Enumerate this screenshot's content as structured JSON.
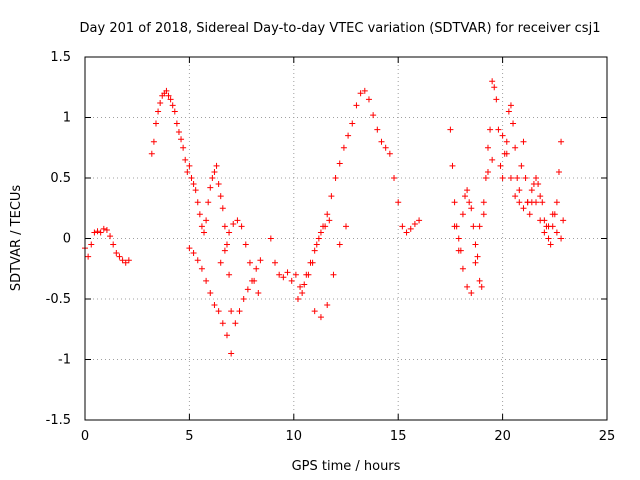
{
  "chart_data": {
    "type": "scatter",
    "title": "Day 201 of 2018, Sidereal Day-to-day VTEC variation (SDTVAR) for receiver csj1",
    "xlabel": "GPS time / hours",
    "ylabel": "SDTVAR / TECUs",
    "xlim": [
      0,
      25
    ],
    "ylim": [
      -1.5,
      1.5
    ],
    "xticks": [
      0,
      5,
      10,
      15,
      20,
      25
    ],
    "yticks": [
      -1.5,
      -1,
      -0.5,
      0,
      0.5,
      1,
      1.5
    ],
    "xtick_labels": [
      "0",
      "5",
      "10",
      "15",
      "20",
      "25"
    ],
    "ytick_labels": [
      "-1.5",
      "-1",
      "-0.5",
      "0",
      "0.5",
      "1",
      "1.5"
    ],
    "grid": true,
    "marker": "+",
    "color": "#ff0000",
    "series": [
      {
        "name": "SDTVAR",
        "x": [
          0.0,
          0.15,
          0.3,
          0.45,
          0.6,
          0.75,
          0.9,
          1.05,
          1.2,
          1.35,
          1.5,
          1.65,
          1.8,
          1.95,
          2.1,
          3.2,
          3.3,
          3.4,
          3.5,
          3.6,
          3.7,
          3.8,
          3.9,
          4.0,
          4.1,
          4.2,
          4.3,
          4.4,
          4.5,
          4.6,
          4.7,
          4.8,
          4.9,
          5.0,
          5.1,
          5.2,
          5.3,
          5.4,
          5.5,
          5.6,
          5.7,
          5.8,
          5.9,
          6.0,
          6.1,
          6.2,
          6.3,
          6.4,
          6.5,
          6.6,
          6.7,
          6.8,
          6.9,
          7.0,
          5.0,
          5.2,
          5.4,
          5.6,
          5.8,
          6.0,
          6.2,
          6.4,
          6.6,
          6.8,
          7.0,
          7.2,
          7.4,
          7.6,
          7.8,
          8.0,
          8.2,
          8.4,
          6.5,
          6.7,
          6.9,
          7.1,
          7.3,
          7.5,
          7.7,
          7.9,
          8.1,
          8.3,
          8.9,
          9.1,
          9.3,
          9.5,
          9.7,
          9.9,
          10.1,
          10.3,
          10.5,
          10.7,
          10.9,
          11.1,
          11.3,
          11.5,
          11.7,
          10.2,
          10.4,
          10.6,
          10.8,
          11.0,
          11.2,
          11.4,
          11.6,
          11.8,
          12.0,
          12.2,
          12.4,
          12.6,
          12.8,
          13.0,
          13.2,
          13.4,
          13.6,
          13.8,
          14.0,
          14.2,
          14.4,
          14.6,
          14.8,
          15.0,
          15.2,
          15.4,
          15.6,
          15.8,
          16.0,
          11.0,
          11.3,
          11.6,
          11.9,
          12.2,
          12.5,
          17.5,
          17.6,
          17.7,
          17.8,
          17.9,
          18.0,
          18.1,
          18.2,
          18.3,
          18.4,
          18.5,
          18.6,
          18.7,
          18.8,
          18.9,
          19.0,
          19.1,
          19.2,
          19.3,
          19.4,
          19.5,
          19.6,
          19.7,
          19.8,
          19.9,
          20.0,
          20.1,
          20.2,
          20.3,
          20.4,
          20.5,
          20.6,
          20.7,
          20.8,
          20.9,
          21.0,
          21.1,
          21.2,
          21.3,
          21.4,
          21.5,
          21.6,
          21.7,
          21.8,
          21.9,
          22.0,
          22.1,
          22.2,
          22.3,
          22.4,
          22.5,
          22.6,
          22.7,
          22.8,
          22.9,
          17.7,
          17.9,
          18.1,
          18.3,
          18.5,
          18.7,
          18.9,
          19.1,
          19.3,
          19.5,
          20.0,
          20.2,
          20.4,
          20.6,
          20.8,
          21.0,
          21.2,
          21.4,
          21.6,
          21.8,
          22.0,
          22.2,
          22.4,
          22.6,
          22.8
        ],
        "y": [
          -0.08,
          -0.15,
          -0.05,
          0.05,
          0.06,
          0.05,
          0.08,
          0.07,
          0.02,
          -0.05,
          -0.12,
          -0.15,
          -0.18,
          -0.2,
          -0.18,
          0.7,
          0.8,
          0.95,
          1.05,
          1.12,
          1.18,
          1.2,
          1.22,
          1.18,
          1.15,
          1.1,
          1.05,
          0.95,
          0.88,
          0.82,
          0.75,
          0.65,
          0.55,
          0.6,
          0.5,
          0.45,
          0.4,
          0.3,
          0.2,
          0.1,
          0.05,
          0.15,
          0.3,
          0.42,
          0.5,
          0.55,
          0.6,
          0.45,
          0.35,
          0.25,
          0.1,
          -0.05,
          -0.3,
          -0.6,
          -0.08,
          -0.12,
          -0.18,
          -0.25,
          -0.35,
          -0.45,
          -0.55,
          -0.6,
          -0.7,
          -0.8,
          -0.95,
          -0.7,
          -0.6,
          -0.5,
          -0.42,
          -0.35,
          -0.25,
          -0.18,
          -0.2,
          -0.1,
          0.05,
          0.12,
          0.15,
          0.1,
          -0.05,
          -0.2,
          -0.35,
          -0.45,
          0.0,
          -0.2,
          -0.3,
          -0.32,
          -0.28,
          -0.35,
          -0.3,
          -0.4,
          -0.38,
          -0.3,
          -0.2,
          -0.05,
          0.05,
          0.1,
          0.15,
          -0.5,
          -0.45,
          -0.3,
          -0.2,
          -0.1,
          0.0,
          0.1,
          0.2,
          0.35,
          0.5,
          0.62,
          0.75,
          0.85,
          0.95,
          1.1,
          1.2,
          1.22,
          1.15,
          1.02,
          0.9,
          0.8,
          0.75,
          0.7,
          0.5,
          0.3,
          0.1,
          0.05,
          0.08,
          0.12,
          0.15,
          -0.6,
          -0.65,
          -0.55,
          -0.3,
          -0.05,
          0.1,
          0.9,
          0.6,
          0.3,
          0.1,
          0.0,
          -0.1,
          0.2,
          0.35,
          0.4,
          0.3,
          0.25,
          0.1,
          -0.05,
          -0.15,
          -0.35,
          -0.4,
          0.2,
          0.5,
          0.75,
          0.9,
          1.3,
          1.25,
          1.15,
          0.9,
          0.6,
          0.5,
          0.7,
          0.8,
          1.05,
          1.1,
          0.95,
          0.75,
          0.5,
          0.4,
          0.6,
          0.8,
          0.5,
          0.3,
          0.2,
          0.3,
          0.45,
          0.5,
          0.45,
          0.35,
          0.3,
          0.15,
          0.1,
          0.0,
          -0.05,
          0.1,
          0.2,
          0.3,
          0.55,
          0.8,
          0.15,
          0.1,
          -0.1,
          -0.25,
          -0.4,
          -0.45,
          -0.2,
          0.1,
          0.3,
          0.55,
          0.65,
          0.85,
          0.7,
          0.5,
          0.35,
          0.3,
          0.25,
          0.3,
          0.4,
          0.3,
          0.15,
          0.05,
          0.1,
          0.2,
          0.05,
          0.0
        ]
      }
    ]
  }
}
